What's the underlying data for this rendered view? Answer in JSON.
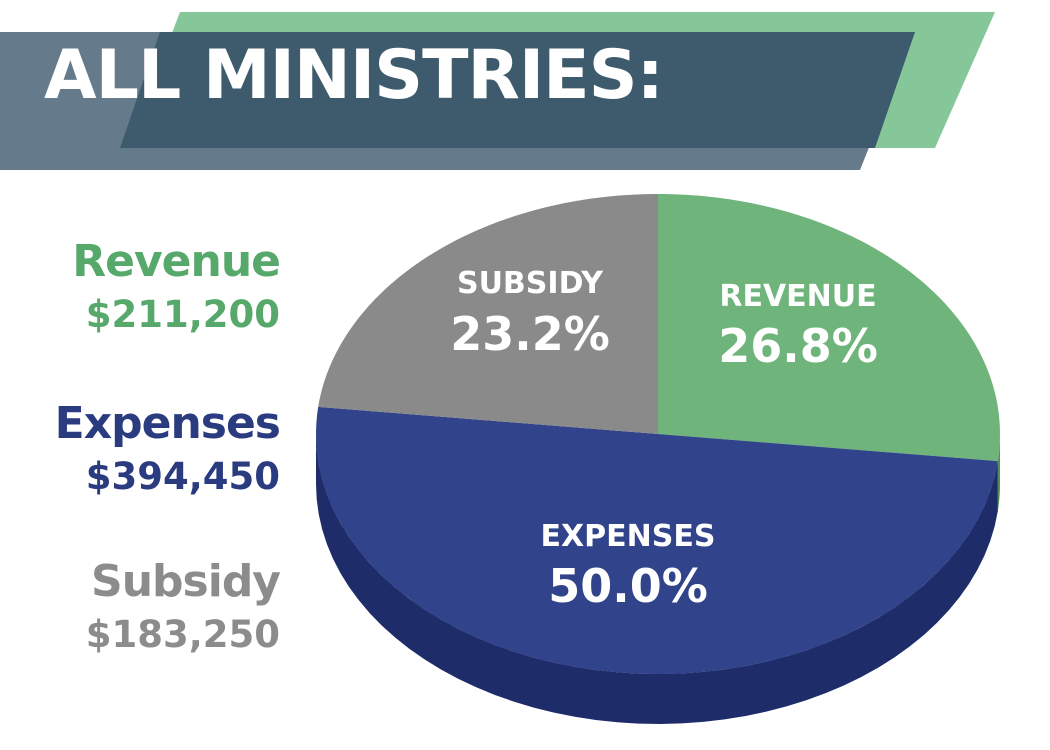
{
  "header": {
    "title": "ALL MINISTRIES:"
  },
  "legend": [
    {
      "name": "Revenue",
      "value": "$211,200",
      "color": "#56a86b"
    },
    {
      "name": "Expenses",
      "value": "$394,450",
      "color": "#2b3b80"
    },
    {
      "name": "Subsidy",
      "value": "$183,250",
      "color": "#8c8c8c"
    }
  ],
  "banner_colors": {
    "green": "#86c79a",
    "slate_light": "#657a8b",
    "slate_dark": "#3d5b6c"
  },
  "chart_data": {
    "type": "pie",
    "title": "ALL MINISTRIES:",
    "slices": [
      {
        "label": "REVENUE",
        "value": 26.8,
        "display": "26.8%",
        "color": "#6fb47b",
        "side_color": "#4e8f5b"
      },
      {
        "label": "EXPENSES",
        "value": 50.0,
        "display": "50.0%",
        "color": "#31438a",
        "side_color": "#1f2c6a"
      },
      {
        "label": "SUBSIDY",
        "value": 23.2,
        "display": "23.2%",
        "color": "#8a8a8a",
        "side_color": "#6a6a6a"
      }
    ],
    "style": "3d-tilted"
  }
}
